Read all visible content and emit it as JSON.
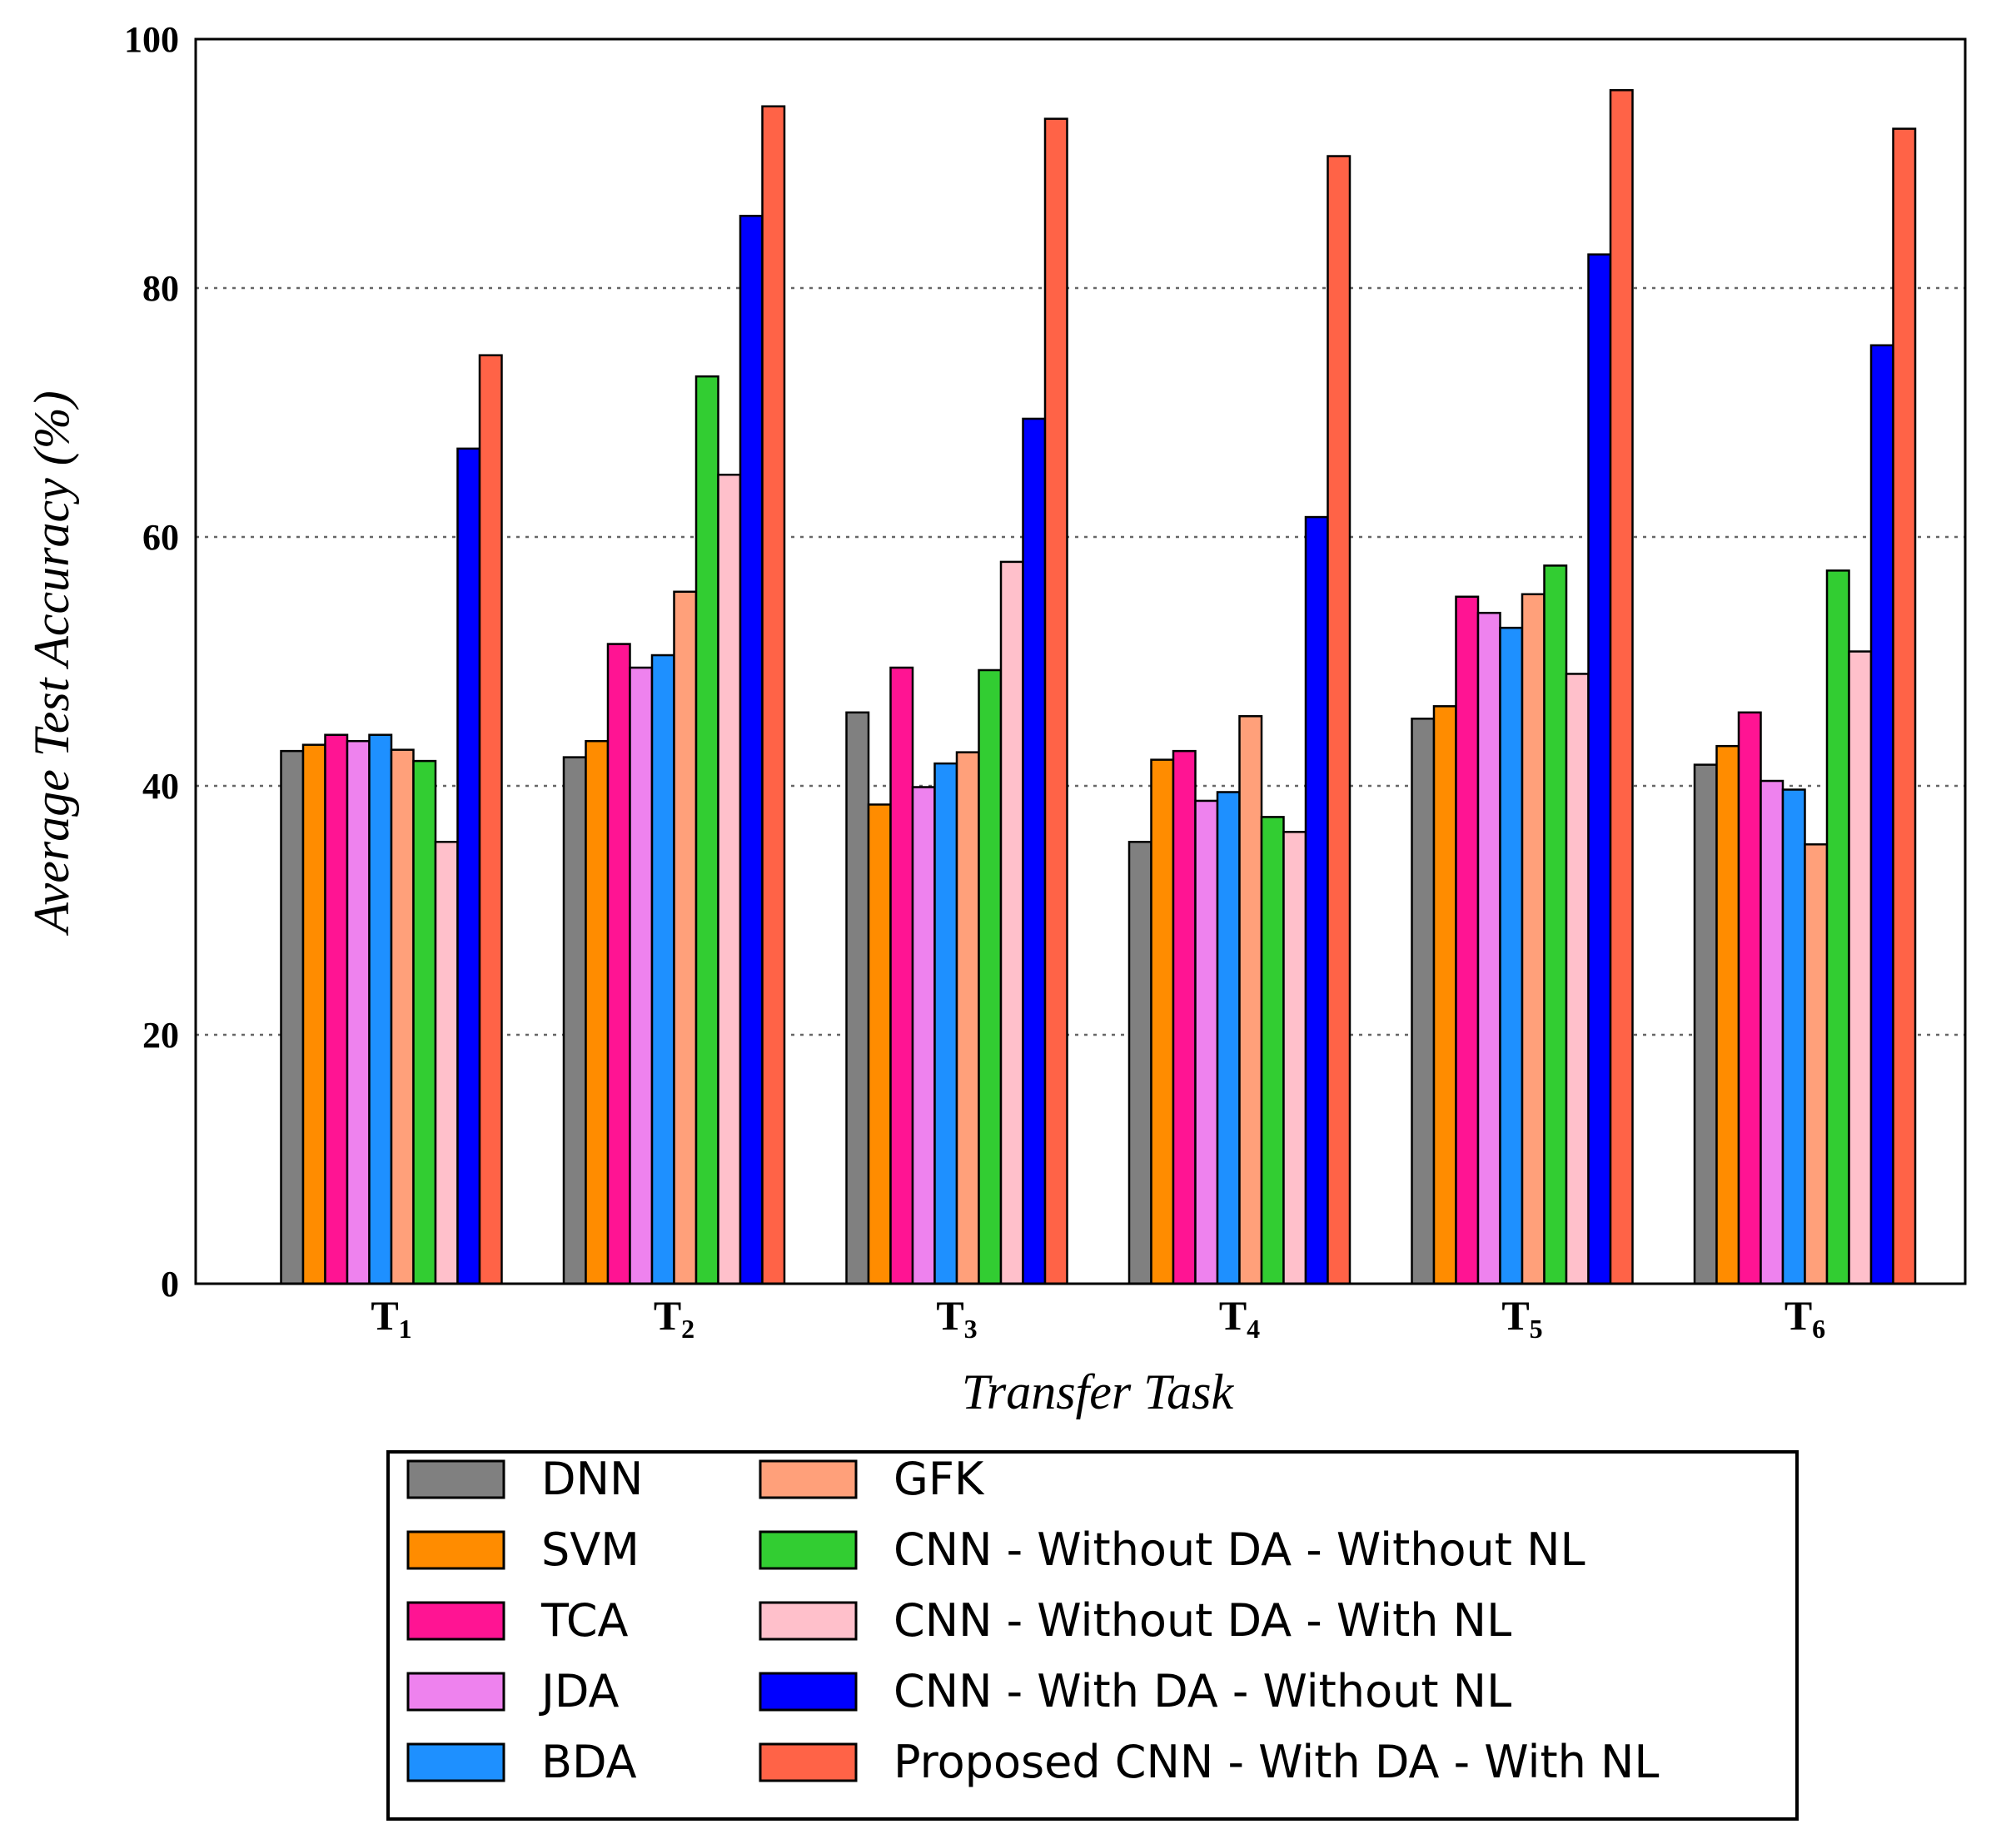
{
  "chart_data": {
    "type": "bar",
    "title": "",
    "xlabel": "Transfer Task",
    "ylabel": "Average Test Accuracy (%)",
    "ylim": [
      0,
      100
    ],
    "yticks": [
      0,
      20,
      40,
      60,
      80,
      100
    ],
    "grid": "horizontal dotted",
    "legend_position": "bottom",
    "categories": [
      {
        "main": "T",
        "sub": "1"
      },
      {
        "main": "T",
        "sub": "2"
      },
      {
        "main": "T",
        "sub": "3"
      },
      {
        "main": "T",
        "sub": "4"
      },
      {
        "main": "T",
        "sub": "5"
      },
      {
        "main": "T",
        "sub": "6"
      }
    ],
    "series": [
      {
        "name": "DNN",
        "color": "#808080",
        "values": [
          42.8,
          42.3,
          45.9,
          35.5,
          45.4,
          41.7
        ]
      },
      {
        "name": "SVM",
        "color": "#ff8c00",
        "values": [
          43.3,
          43.6,
          38.5,
          42.1,
          46.4,
          43.2
        ]
      },
      {
        "name": "TCA",
        "color": "#ff1493",
        "values": [
          44.1,
          51.4,
          49.5,
          42.8,
          55.2,
          45.9
        ]
      },
      {
        "name": "JDA",
        "color": "#ee82ee",
        "values": [
          43.6,
          49.5,
          39.9,
          38.8,
          53.9,
          40.4
        ]
      },
      {
        "name": "BDA",
        "color": "#1e90ff",
        "values": [
          44.1,
          50.5,
          41.8,
          39.5,
          52.7,
          39.7
        ]
      },
      {
        "name": "GFK",
        "color": "#ffa07a",
        "values": [
          42.9,
          55.6,
          42.7,
          45.6,
          55.4,
          35.3
        ]
      },
      {
        "name": "CNN - Without DA - Without NL",
        "color": "#32cd32",
        "values": [
          42.0,
          72.9,
          49.3,
          37.5,
          57.7,
          57.3
        ]
      },
      {
        "name": "CNN - Without DA - With NL",
        "color": "#ffc0cb",
        "values": [
          35.5,
          65.0,
          58.0,
          36.3,
          49.0,
          50.8
        ]
      },
      {
        "name": "CNN - With DA - Without NL",
        "color": "#0000ff",
        "values": [
          67.1,
          85.8,
          69.5,
          61.6,
          82.7,
          75.4
        ]
      },
      {
        "name": "Proposed CNN - With DA - With NL",
        "color": "#ff6347",
        "values": [
          74.6,
          94.6,
          93.6,
          90.6,
          95.9,
          92.8
        ]
      }
    ]
  }
}
